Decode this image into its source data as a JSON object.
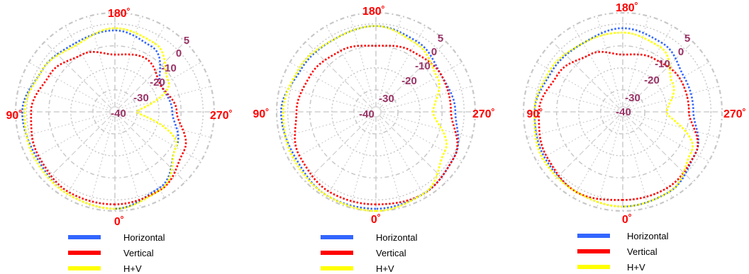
{
  "chart_data": [
    {
      "type": "polar",
      "angle_labels": {
        "top": "180˚",
        "left": "90˚",
        "right": "270˚",
        "bottom": "0˚"
      },
      "ring_labels": [
        "5",
        "0",
        "-10",
        "-20",
        "-30",
        "-40"
      ],
      "rlim": [
        -40,
        5
      ],
      "legend": [
        {
          "name": "Horizontal",
          "color": "#3366ff"
        },
        {
          "name": "Vertical",
          "color": "#ff0000"
        },
        {
          "name": "H+V",
          "color": "#ffff00"
        }
      ],
      "series": [
        {
          "name": "Horizontal",
          "color": "#3366ff",
          "theta": [
            0,
            30,
            60,
            90,
            120,
            150,
            180,
            210,
            240,
            270,
            300,
            330
          ],
          "r": [
            4,
            3,
            1,
            2,
            -2,
            -4,
            -3,
            -6,
            -16,
            -14,
            -8,
            0
          ]
        },
        {
          "name": "Vertical",
          "color": "#ff0000",
          "theta": [
            0,
            30,
            60,
            90,
            120,
            150,
            180,
            210,
            240,
            270,
            300,
            330
          ],
          "r": [
            2,
            2,
            0,
            -2,
            -6,
            -10,
            -14,
            -12,
            -16,
            -12,
            -4,
            1
          ]
        },
        {
          "name": "H+V",
          "color": "#ffff00",
          "theta": [
            0,
            30,
            60,
            90,
            120,
            150,
            180,
            210,
            240,
            270,
            300,
            330
          ],
          "r": [
            4,
            3,
            2,
            1,
            -2,
            -5,
            -2,
            -4,
            -12,
            -30,
            -8,
            1
          ]
        }
      ]
    },
    {
      "type": "polar",
      "angle_labels": {
        "top": "180˚",
        "left": "90˚",
        "right": "270˚",
        "bottom": "0˚"
      },
      "ring_labels": [
        "5",
        "0",
        "-10",
        "-20",
        "-30",
        "-40"
      ],
      "rlim": [
        -40,
        5
      ],
      "legend": [
        {
          "name": "Horizontal",
          "color": "#3366ff"
        },
        {
          "name": "Vertical",
          "color": "#ff0000"
        },
        {
          "name": "H+V",
          "color": "#ffff00"
        }
      ],
      "series": [
        {
          "name": "Horizontal",
          "color": "#3366ff",
          "theta": [
            0,
            30,
            60,
            90,
            120,
            150,
            180,
            210,
            240,
            270,
            300,
            330
          ],
          "r": [
            4,
            4,
            2,
            3,
            -1,
            -2,
            -1,
            -3,
            -6,
            -4,
            1,
            3
          ]
        },
        {
          "name": "Vertical",
          "color": "#ff0000",
          "theta": [
            0,
            30,
            60,
            90,
            120,
            150,
            180,
            210,
            240,
            270,
            300,
            330
          ],
          "r": [
            2,
            2,
            0,
            -4,
            -6,
            -8,
            -10,
            -8,
            -6,
            -6,
            1,
            3
          ]
        },
        {
          "name": "H+V",
          "color": "#ffff00",
          "theta": [
            0,
            30,
            60,
            90,
            120,
            150,
            180,
            210,
            240,
            270,
            300,
            330
          ],
          "r": [
            5,
            4,
            3,
            2,
            0,
            -2,
            -1,
            -4,
            -8,
            -14,
            -4,
            3
          ]
        }
      ]
    },
    {
      "type": "polar",
      "angle_labels": {
        "top": "180˚",
        "left": "90˚",
        "right": "270˚",
        "bottom": "0˚"
      },
      "ring_labels": [
        "5",
        "0",
        "-10",
        "-20",
        "-30",
        "-40"
      ],
      "rlim": [
        -40,
        5
      ],
      "legend": [
        {
          "name": "Horizontal",
          "color": "#3366ff"
        },
        {
          "name": "Vertical",
          "color": "#ff0000"
        },
        {
          "name": "H+V",
          "color": "#ffff00"
        }
      ],
      "series": [
        {
          "name": "Horizontal",
          "color": "#3366ff",
          "theta": [
            0,
            30,
            60,
            90,
            120,
            150,
            180,
            210,
            240,
            270,
            300,
            330
          ],
          "r": [
            3,
            2,
            1,
            0,
            -3,
            -4,
            -2,
            -4,
            -8,
            -8,
            -2,
            2
          ]
        },
        {
          "name": "Vertical",
          "color": "#ff0000",
          "theta": [
            0,
            30,
            60,
            90,
            120,
            150,
            180,
            210,
            240,
            270,
            300,
            330
          ],
          "r": [
            0,
            2,
            0,
            -2,
            -6,
            -10,
            -14,
            -12,
            -10,
            -10,
            -2,
            0
          ]
        },
        {
          "name": "H+V",
          "color": "#ffff00",
          "theta": [
            0,
            30,
            60,
            90,
            120,
            150,
            180,
            210,
            240,
            270,
            300,
            330
          ],
          "r": [
            3,
            2,
            2,
            0,
            -2,
            -4,
            -4,
            -6,
            -14,
            -20,
            -4,
            2
          ]
        }
      ]
    }
  ]
}
